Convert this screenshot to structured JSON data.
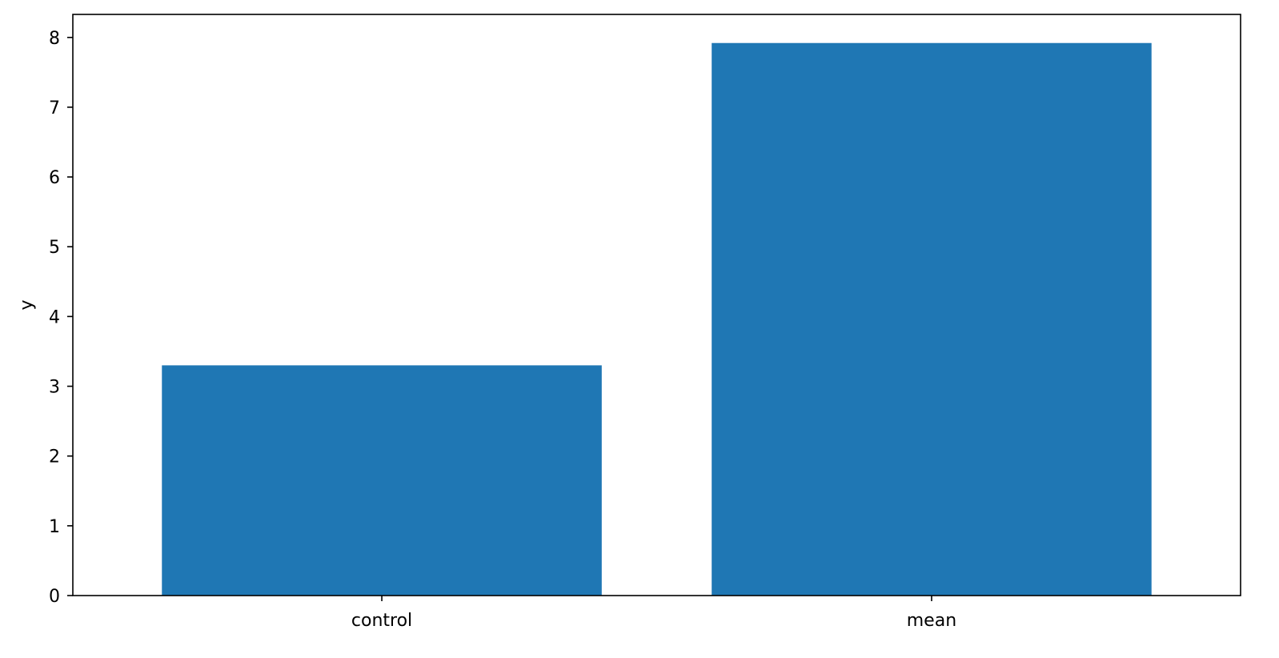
{
  "chart_data": {
    "type": "bar",
    "categories": [
      "control",
      "mean"
    ],
    "values": [
      3.3,
      7.92
    ],
    "title": "",
    "xlabel": "",
    "ylabel": "y",
    "ylim": [
      0,
      8.33
    ],
    "yticks": [
      0,
      1,
      2,
      3,
      4,
      5,
      6,
      7,
      8
    ],
    "grid": false,
    "legend": "none",
    "bar_color": "#1f77b4",
    "axis_color": "#000000"
  }
}
